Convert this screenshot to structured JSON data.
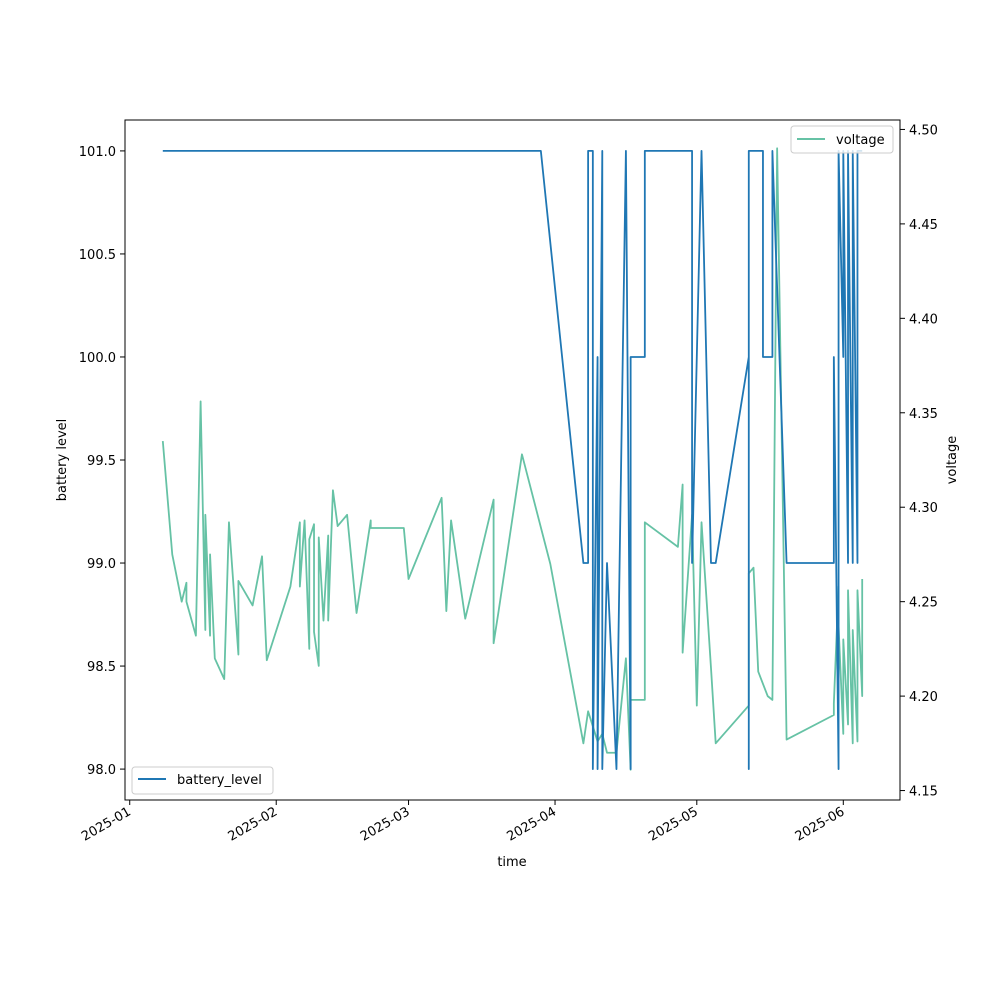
{
  "chart_data": {
    "type": "line",
    "title": "",
    "xlabel": "time",
    "ylabel_left": "battery level",
    "ylabel_right": "voltage",
    "x_range": [
      "2024-12-31",
      "2025-06-13"
    ],
    "ylim_left": [
      97.85,
      101.15
    ],
    "ylim_right": [
      4.145,
      4.505
    ],
    "x_ticks": [
      "2025-01",
      "2025-02",
      "2025-03",
      "2025-04",
      "2025-05",
      "2025-06"
    ],
    "x_tick_dates": [
      "2025-01-01",
      "2025-02-01",
      "2025-03-01",
      "2025-04-01",
      "2025-05-01",
      "2025-06-01"
    ],
    "y_ticks_left": [
      "98.0",
      "98.5",
      "99.0",
      "99.5",
      "100.0",
      "100.5",
      "101.0"
    ],
    "y_tick_values_left": [
      98.0,
      98.5,
      99.0,
      99.5,
      100.0,
      100.5,
      101.0
    ],
    "y_ticks_right": [
      "4.15",
      "4.20",
      "4.25",
      "4.30",
      "4.35",
      "4.40",
      "4.45",
      "4.50"
    ],
    "y_tick_values_right": [
      4.15,
      4.2,
      4.25,
      4.3,
      4.35,
      4.4,
      4.45,
      4.5
    ],
    "grid": false,
    "colors": {
      "battery_level": "#1f77b4",
      "voltage": "#66c2a5"
    },
    "series": [
      {
        "name": "battery_level",
        "axis": "left",
        "legend": "lower-left",
        "x": [
          "2025-01-08",
          "2025-03-29",
          "2025-04-07",
          "2025-04-08",
          "2025-04-08",
          "2025-04-09",
          "2025-04-09",
          "2025-04-10",
          "2025-04-10",
          "2025-04-11",
          "2025-04-11",
          "2025-04-12",
          "2025-04-14",
          "2025-04-16",
          "2025-04-17",
          "2025-04-17",
          "2025-04-20",
          "2025-04-20",
          "2025-04-30",
          "2025-04-30",
          "2025-05-02",
          "2025-05-04",
          "2025-05-05",
          "2025-05-12",
          "2025-05-12",
          "2025-05-12",
          "2025-05-15",
          "2025-05-15",
          "2025-05-17",
          "2025-05-17",
          "2025-05-20",
          "2025-05-30",
          "2025-05-30",
          "2025-05-31",
          "2025-05-31",
          "2025-06-01",
          "2025-06-01",
          "2025-06-02",
          "2025-06-02",
          "2025-06-03",
          "2025-06-03",
          "2025-06-04",
          "2025-06-04",
          "2025-06-05"
        ],
        "values": [
          101.0,
          101.0,
          99.0,
          99.0,
          101.0,
          101.0,
          98.0,
          100.0,
          98.0,
          101.0,
          98.0,
          99.0,
          98.0,
          101.0,
          98.0,
          100.0,
          100.0,
          101.0,
          101.0,
          99.0,
          101.0,
          99.0,
          99.0,
          100.0,
          98.0,
          101.0,
          101.0,
          100.0,
          100.0,
          101.0,
          99.0,
          99.0,
          100.0,
          98.0,
          101.0,
          100.0,
          101.0,
          99.0,
          101.0,
          99.0,
          101.0,
          99.0,
          101.0,
          101.0
        ]
      },
      {
        "name": "voltage",
        "axis": "right",
        "legend": "upper-right",
        "x": [
          "2025-01-08",
          "2025-01-10",
          "2025-01-12",
          "2025-01-13",
          "2025-01-13",
          "2025-01-15",
          "2025-01-16",
          "2025-01-17",
          "2025-01-17",
          "2025-01-18",
          "2025-01-18",
          "2025-01-19",
          "2025-01-21",
          "2025-01-22",
          "2025-01-24",
          "2025-01-24",
          "2025-01-27",
          "2025-01-29",
          "2025-01-30",
          "2025-02-04",
          "2025-02-06",
          "2025-02-06",
          "2025-02-07",
          "2025-02-08",
          "2025-02-08",
          "2025-02-09",
          "2025-02-09",
          "2025-02-10",
          "2025-02-10",
          "2025-02-11",
          "2025-02-12",
          "2025-02-12",
          "2025-02-13",
          "2025-02-14",
          "2025-02-16",
          "2025-02-18",
          "2025-02-21",
          "2025-02-21",
          "2025-02-28",
          "2025-03-01",
          "2025-03-08",
          "2025-03-09",
          "2025-03-10",
          "2025-03-13",
          "2025-03-19",
          "2025-03-19",
          "2025-03-20",
          "2025-03-25",
          "2025-03-31",
          "2025-04-07",
          "2025-04-08",
          "2025-04-09",
          "2025-04-10",
          "2025-04-11",
          "2025-04-12",
          "2025-04-14",
          "2025-04-16",
          "2025-04-17",
          "2025-04-17",
          "2025-04-20",
          "2025-04-20",
          "2025-04-27",
          "2025-04-28",
          "2025-04-28",
          "2025-04-30",
          "2025-05-01",
          "2025-05-02",
          "2025-05-04",
          "2025-05-05",
          "2025-05-12",
          "2025-05-12",
          "2025-05-13",
          "2025-05-14",
          "2025-05-16",
          "2025-05-17",
          "2025-05-18",
          "2025-05-20",
          "2025-05-30",
          "2025-05-30",
          "2025-05-31",
          "2025-05-31",
          "2025-06-01",
          "2025-06-01",
          "2025-06-02",
          "2025-06-02",
          "2025-06-03",
          "2025-06-03",
          "2025-06-04",
          "2025-06-04",
          "2025-06-05",
          "2025-06-05"
        ],
        "values": [
          4.335,
          4.275,
          4.25,
          4.26,
          4.25,
          4.232,
          4.356,
          4.235,
          4.296,
          4.232,
          4.275,
          4.22,
          4.209,
          4.292,
          4.222,
          4.261,
          4.248,
          4.274,
          4.219,
          4.258,
          4.292,
          4.258,
          4.293,
          4.225,
          4.283,
          4.291,
          4.234,
          4.216,
          4.284,
          4.24,
          4.285,
          4.24,
          4.309,
          4.29,
          4.296,
          4.244,
          4.293,
          4.289,
          4.289,
          4.262,
          4.305,
          4.245,
          4.293,
          4.241,
          4.304,
          4.228,
          4.244,
          4.328,
          4.27,
          4.175,
          4.192,
          4.184,
          4.176,
          4.18,
          4.17,
          4.17,
          4.22,
          4.161,
          4.198,
          4.198,
          4.292,
          4.279,
          4.312,
          4.223,
          4.296,
          4.195,
          4.292,
          4.215,
          4.175,
          4.195,
          4.265,
          4.268,
          4.213,
          4.2,
          4.198,
          4.49,
          4.177,
          4.19,
          4.196,
          4.258,
          4.237,
          4.18,
          4.23,
          4.185,
          4.256,
          4.175,
          4.235,
          4.176,
          4.256,
          4.2,
          4.262
        ]
      }
    ]
  }
}
